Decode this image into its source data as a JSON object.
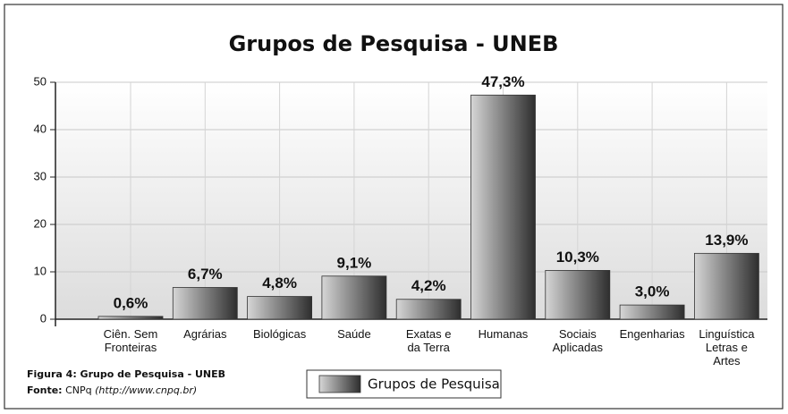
{
  "chart_data": {
    "type": "bar",
    "title": "Grupos de Pesquisa - UNEB",
    "categories": [
      "Ciên. Sem\nFronteiras",
      "Agrárias",
      "Biológicas",
      "Saúde",
      "Exatas e\nda Terra",
      "Humanas",
      "Sociais\nAplicadas",
      "Engenharias",
      "Linguística\nLetras e\nArtes"
    ],
    "series": [
      {
        "name": "Grupos de Pesquisa",
        "color": "#2e2e2e",
        "values": [
          0.6,
          6.7,
          4.8,
          9.1,
          4.2,
          47.3,
          10.3,
          3.0,
          13.9
        ],
        "value_labels": [
          "0,6%",
          "6,7%",
          "4,8%",
          "9,1%",
          "4,2%",
          "47,3%",
          "10,3%",
          "3,0%",
          "13,9%"
        ]
      }
    ],
    "ylim": [
      0,
      50
    ],
    "yticks": [
      0,
      10,
      20,
      30,
      40,
      50
    ],
    "grid": true,
    "caption": {
      "figure": "Figura 4: Grupo de Pesquisa - UNEB",
      "source_label": "Fonte:",
      "source": "CNPq",
      "source_url": "(http://www.cnpq.br)"
    }
  }
}
